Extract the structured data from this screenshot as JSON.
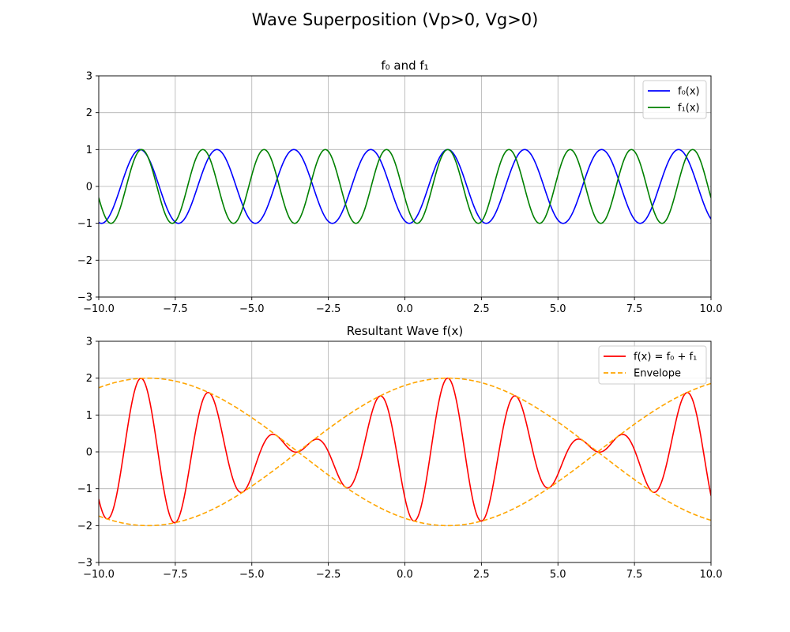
{
  "figure": {
    "title": "Wave Superposition (Vp>0, Vg>0)"
  },
  "chart_data": [
    {
      "type": "line",
      "title": "f₀ and f₁",
      "xlim": [
        -10,
        10
      ],
      "ylim": [
        -3,
        3
      ],
      "xticks": [
        -10,
        -7.5,
        -5,
        -2.5,
        0,
        2.5,
        5,
        7.5,
        10
      ],
      "xtick_labels": [
        "−10.0",
        "−7.5",
        "−5.0",
        "−2.5",
        "0.0",
        "2.5",
        "5.0",
        "7.5",
        "10.0"
      ],
      "yticks": [
        -3,
        -2,
        -1,
        0,
        1,
        2,
        3
      ],
      "ytick_labels": [
        "−3",
        "−2",
        "−1",
        "0",
        "1",
        "2",
        "3"
      ],
      "grid": true,
      "legend_position": "top-right",
      "series": [
        {
          "name": "f₀(x)",
          "color": "#0000ff",
          "dash": "solid",
          "function": "cos(2.5*x - 3.5)",
          "xrange": [
            -10,
            10
          ]
        },
        {
          "name": "f₁(x)",
          "color": "#008000",
          "dash": "solid",
          "function": "cos(3.1416*x - 4.4)",
          "xrange": [
            -10,
            10
          ]
        }
      ]
    },
    {
      "type": "line",
      "title": "Resultant Wave f(x)",
      "xlim": [
        -10,
        10
      ],
      "ylim": [
        -3,
        3
      ],
      "xticks": [
        -10,
        -7.5,
        -5,
        -2.5,
        0,
        2.5,
        5,
        7.5,
        10
      ],
      "xtick_labels": [
        "−10.0",
        "−7.5",
        "−5.0",
        "−2.5",
        "0.0",
        "2.5",
        "5.0",
        "7.5",
        "10.0"
      ],
      "yticks": [
        -3,
        -2,
        -1,
        0,
        1,
        2,
        3
      ],
      "ytick_labels": [
        "−3",
        "−2",
        "−1",
        "0",
        "1",
        "2",
        "3"
      ],
      "grid": true,
      "legend_position": "top-right",
      "series": [
        {
          "name": "f(x) = f₀ + f₁",
          "color": "#ff0000",
          "dash": "solid",
          "function": "cos(2.5*x - 3.5) + cos(3.1416*x - 4.4)",
          "xrange": [
            -10,
            10
          ]
        },
        {
          "name": "Envelope",
          "color": "#ffa500",
          "dash": "dashed",
          "function": "±2*cos(0.3208*x - 0.45)",
          "xrange": [
            -10,
            10
          ]
        }
      ]
    }
  ]
}
